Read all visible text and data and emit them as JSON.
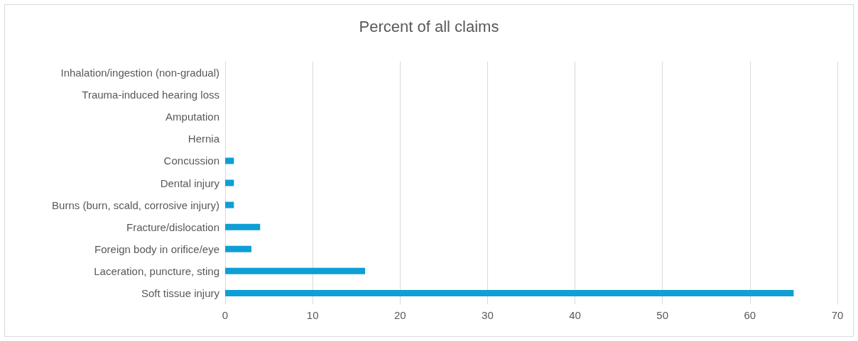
{
  "chart_data": {
    "type": "bar",
    "orientation": "horizontal",
    "title": "Percent of all claims",
    "categories": [
      "Inhalation/ingestion (non-gradual)",
      "Trauma-induced hearing loss",
      "Amputation",
      "Hernia",
      "Concussion",
      "Dental injury",
      "Burns (burn, scald, corrosive injury)",
      "Fracture/dislocation",
      "Foreign body in orifice/eye",
      "Laceration, puncture, sting",
      "Soft tissue injury"
    ],
    "values": [
      0,
      0,
      0,
      0,
      1,
      1,
      1,
      4,
      3,
      16,
      65
    ],
    "color": "#0f9ed5",
    "xlim": [
      0,
      70
    ],
    "xticks": [
      0,
      10,
      20,
      30,
      40,
      50,
      60,
      70
    ],
    "grid": "x"
  }
}
